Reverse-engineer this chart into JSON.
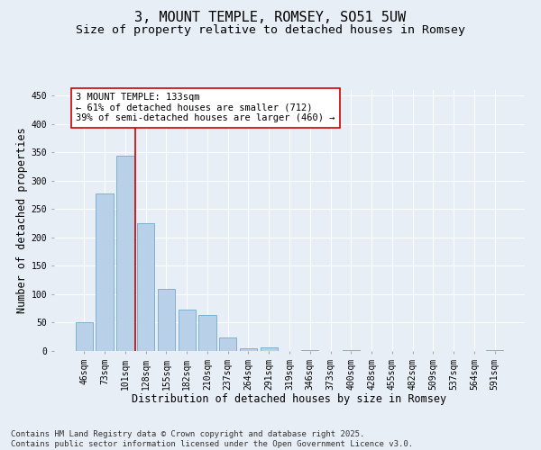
{
  "title": "3, MOUNT TEMPLE, ROMSEY, SO51 5UW",
  "subtitle": "Size of property relative to detached houses in Romsey",
  "xlabel": "Distribution of detached houses by size in Romsey",
  "ylabel": "Number of detached properties",
  "categories": [
    "46sqm",
    "73sqm",
    "101sqm",
    "128sqm",
    "155sqm",
    "182sqm",
    "210sqm",
    "237sqm",
    "264sqm",
    "291sqm",
    "319sqm",
    "346sqm",
    "373sqm",
    "400sqm",
    "428sqm",
    "455sqm",
    "482sqm",
    "509sqm",
    "537sqm",
    "564sqm",
    "591sqm"
  ],
  "values": [
    51,
    278,
    345,
    226,
    110,
    73,
    64,
    24,
    5,
    7,
    0,
    1,
    0,
    1,
    0,
    0,
    0,
    0,
    0,
    0,
    2
  ],
  "bar_color": "#b8d0e8",
  "bar_edge_color": "#5a9fc8",
  "background_color": "#e8eef5",
  "grid_color": "#ffffff",
  "vline_color": "#cc0000",
  "vline_x_index": 2.5,
  "annotation_text": "3 MOUNT TEMPLE: 133sqm\n← 61% of detached houses are smaller (712)\n39% of semi-detached houses are larger (460) →",
  "annotation_box_facecolor": "#ffffff",
  "annotation_box_edgecolor": "#cc0000",
  "ylim": [
    0,
    460
  ],
  "yticks": [
    0,
    50,
    100,
    150,
    200,
    250,
    300,
    350,
    400,
    450
  ],
  "footer": "Contains HM Land Registry data © Crown copyright and database right 2025.\nContains public sector information licensed under the Open Government Licence v3.0.",
  "title_fontsize": 11,
  "subtitle_fontsize": 9.5,
  "tick_fontsize": 7,
  "label_fontsize": 8.5,
  "annotation_fontsize": 7.5,
  "footer_fontsize": 6.5
}
